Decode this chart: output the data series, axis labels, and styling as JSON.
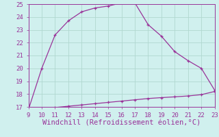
{
  "x_main": [
    9,
    10,
    11,
    12,
    13,
    14,
    15,
    16,
    17,
    18,
    19,
    20,
    21,
    22,
    23
  ],
  "y_main": [
    16.8,
    20.0,
    22.6,
    23.7,
    24.4,
    24.7,
    24.85,
    25.1,
    25.1,
    23.4,
    22.5,
    21.3,
    20.6,
    20.0,
    18.3
  ],
  "x_flat": [
    9,
    10,
    11,
    12,
    13,
    14,
    15,
    16,
    17,
    18,
    19,
    20,
    21,
    22,
    23
  ],
  "y_flat": [
    16.75,
    16.85,
    16.95,
    17.05,
    17.15,
    17.25,
    17.35,
    17.45,
    17.55,
    17.65,
    17.72,
    17.78,
    17.85,
    17.95,
    18.2
  ],
  "line_color": "#993399",
  "background_color": "#d0f0ee",
  "grid_color": "#b0d8d0",
  "xlabel": "Windchill (Refroidissement éolien,°C)",
  "xlim": [
    9,
    23
  ],
  "ylim": [
    17,
    25
  ],
  "xticks": [
    9,
    10,
    11,
    12,
    13,
    14,
    15,
    16,
    17,
    18,
    19,
    20,
    21,
    22,
    23
  ],
  "yticks": [
    17,
    18,
    19,
    20,
    21,
    22,
    23,
    24,
    25
  ],
  "tick_color": "#993399",
  "xlabel_color": "#993399",
  "tick_fontsize": 6.5,
  "xlabel_fontsize": 7.5
}
